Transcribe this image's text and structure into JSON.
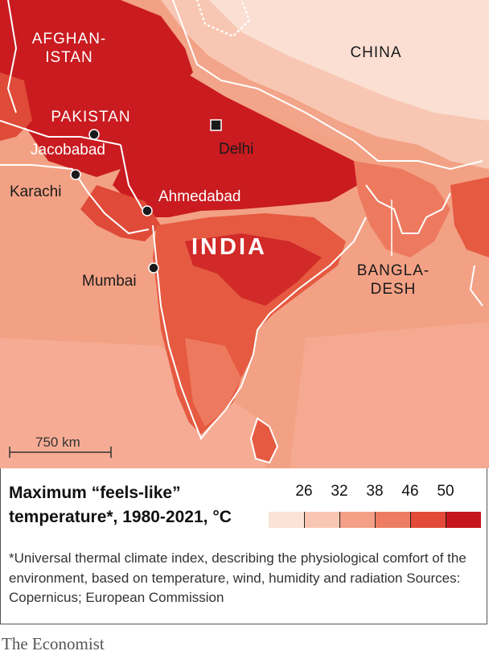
{
  "map": {
    "countries": [
      {
        "id": "afghanistan",
        "name": "AFGHAN-\nISTAN"
      },
      {
        "id": "pakistan",
        "name": "PAKISTAN"
      },
      {
        "id": "china",
        "name": "CHINA"
      },
      {
        "id": "india",
        "name": "INDIA"
      },
      {
        "id": "bangladesh",
        "name": "BANGLA-\nDESH"
      }
    ],
    "cities": [
      {
        "id": "jacobabad",
        "name": "Jacobabad"
      },
      {
        "id": "karachi",
        "name": "Karachi"
      },
      {
        "id": "ahmedabad",
        "name": "Ahmedabad"
      },
      {
        "id": "mumbai",
        "name": "Mumbai"
      },
      {
        "id": "delhi",
        "name": "Delhi",
        "capital": true
      }
    ],
    "scale_bar": "750 km"
  },
  "legend": {
    "title": "Maximum “feels-like” temperature*, 1980-2021, °C",
    "ticks": [
      "26",
      "32",
      "38",
      "46",
      "50"
    ],
    "colors": [
      "#fce3d8",
      "#f8c6b2",
      "#f3a086",
      "#ed7d62",
      "#e34a37",
      "#c4161c"
    ]
  },
  "footnote": "*Universal thermal climate index, describing the physiological comfort of the environment, based on temperature, wind, humidity and radiation    Sources: Copernicus; European Commission",
  "brand": "The Economist"
}
